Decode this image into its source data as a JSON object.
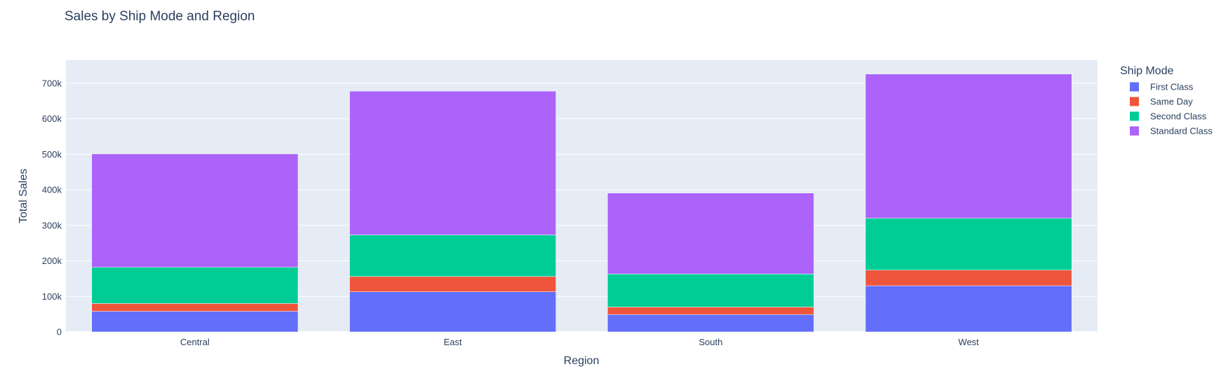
{
  "chart_data": {
    "type": "bar",
    "stacked": true,
    "title": "Sales by Ship Mode and Region",
    "xlabel": "Region",
    "ylabel": "Total Sales",
    "categories": [
      "Central",
      "East",
      "South",
      "West"
    ],
    "ylim": [
      0,
      765000
    ],
    "yticks": [
      0,
      100000,
      200000,
      300000,
      400000,
      500000,
      600000,
      700000
    ],
    "ytick_labels": [
      "0",
      "100k",
      "200k",
      "300k",
      "400k",
      "500k",
      "600k",
      "700k"
    ],
    "grid": true,
    "legend": {
      "title": "Ship Mode",
      "placement": "right"
    },
    "series": [
      {
        "name": "First Class",
        "color": "#636efa",
        "values": [
          58000,
          113000,
          49000,
          130000
        ]
      },
      {
        "name": "Same Day",
        "color": "#ef553b",
        "values": [
          22000,
          43000,
          21000,
          44000
        ]
      },
      {
        "name": "Second Class",
        "color": "#00cc96",
        "values": [
          102000,
          117000,
          93000,
          146000
        ]
      },
      {
        "name": "Standard Class",
        "color": "#ab63fa",
        "values": [
          319000,
          405000,
          228000,
          406000
        ]
      }
    ]
  }
}
